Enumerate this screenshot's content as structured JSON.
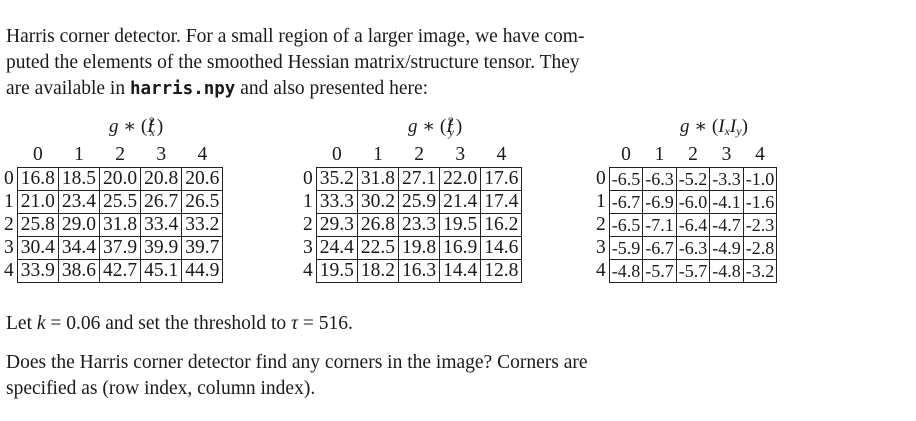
{
  "intro": {
    "text_before": "Harris corner detector.  For a small region of a larger image, we have com-",
    "line2": "puted the elements of the smoothed Hessian matrix/structure tensor.  They",
    "line3_before": "are available in ",
    "filename": "harris.npy",
    "line3_after": " and also presented here:"
  },
  "matrices": [
    {
      "title": "g ∗ (I_x^2)",
      "col_headers": [
        "0",
        "1",
        "2",
        "3",
        "4"
      ],
      "row_headers": [
        "0",
        "1",
        "2",
        "3",
        "4"
      ],
      "rows": [
        [
          "16.8",
          "18.5",
          "20.0",
          "20.8",
          "20.6"
        ],
        [
          "21.0",
          "23.4",
          "25.5",
          "26.7",
          "26.5"
        ],
        [
          "25.8",
          "29.0",
          "31.8",
          "33.4",
          "33.2"
        ],
        [
          "30.4",
          "34.4",
          "37.9",
          "39.9",
          "39.7"
        ],
        [
          "33.9",
          "38.6",
          "42.7",
          "45.1",
          "44.9"
        ]
      ]
    },
    {
      "title": "g ∗ (I_y^2)",
      "col_headers": [
        "0",
        "1",
        "2",
        "3",
        "4"
      ],
      "row_headers": [
        "0",
        "1",
        "2",
        "3",
        "4"
      ],
      "rows": [
        [
          "35.2",
          "31.8",
          "27.1",
          "22.0",
          "17.6"
        ],
        [
          "33.3",
          "30.2",
          "25.9",
          "21.4",
          "17.4"
        ],
        [
          "29.3",
          "26.8",
          "23.3",
          "19.5",
          "16.2"
        ],
        [
          "24.4",
          "22.5",
          "19.8",
          "16.9",
          "14.6"
        ],
        [
          "19.5",
          "18.2",
          "16.3",
          "14.4",
          "12.8"
        ]
      ]
    },
    {
      "title": "g ∗ (I_x I_y)",
      "col_headers": [
        "0",
        "1",
        "2",
        "3",
        "4"
      ],
      "row_headers": [
        "0",
        "1",
        "2",
        "3",
        "4"
      ],
      "rows": [
        [
          "-6.5",
          "-6.3",
          "-5.2",
          "-3.3",
          "-1.0"
        ],
        [
          "-6.7",
          "-6.9",
          "-6.0",
          "-4.1",
          "-1.6"
        ],
        [
          "-6.5",
          "-7.1",
          "-6.4",
          "-4.7",
          "-2.3"
        ],
        [
          "-5.9",
          "-6.7",
          "-6.3",
          "-4.9",
          "-2.8"
        ],
        [
          "-4.8",
          "-5.7",
          "-5.7",
          "-4.8",
          "-3.2"
        ]
      ]
    }
  ],
  "threshold": {
    "prefix": "Let ",
    "k_symbol": "k",
    "k_text": " = 0.06 and set the threshold to ",
    "tau_symbol": "τ",
    "tau_text": " = 516."
  },
  "question": {
    "line1": "Does the Harris corner detector find any corners in the image?  Corners are",
    "line2": "specified as (row index, column index)."
  }
}
